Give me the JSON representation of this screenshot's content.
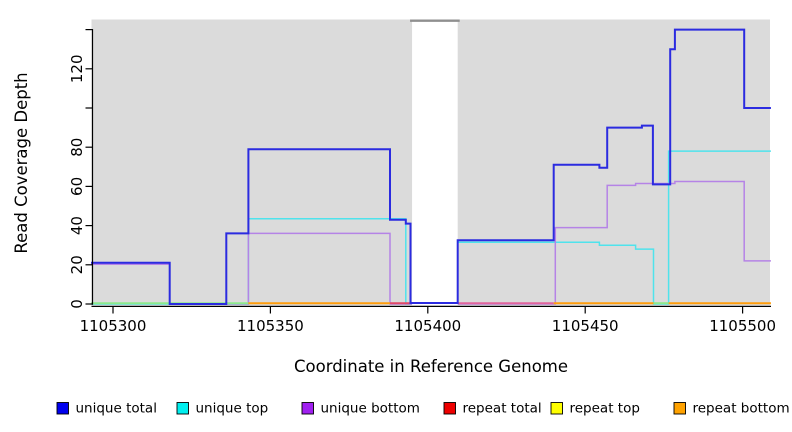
{
  "chart_data": {
    "type": "line",
    "subtype": "step-coverage",
    "title": "",
    "xlabel": "Coordinate in Reference Genome",
    "ylabel": "Read Coverage Depth",
    "xlim": [
      1105293,
      1105509
    ],
    "ylim": [
      0,
      145
    ],
    "grid": false,
    "legend_position": "bottom",
    "panel_background": "#dbdbdb",
    "x_ticks": [
      {
        "value": 1105300,
        "label": "1105300"
      },
      {
        "value": 1105350,
        "label": "1105350"
      },
      {
        "value": 1105400,
        "label": "1105400"
      },
      {
        "value": 1105450,
        "label": "1105450"
      },
      {
        "value": 1105500,
        "label": "1105500"
      }
    ],
    "y_ticks": [
      {
        "value": 0,
        "label": "0"
      },
      {
        "value": 20,
        "label": "20"
      },
      {
        "value": 40,
        "label": "40"
      },
      {
        "value": 60,
        "label": "60"
      },
      {
        "value": 80,
        "label": "80"
      },
      {
        "value": 100,
        "label": ""
      },
      {
        "value": 120,
        "label": "120"
      },
      {
        "value": 140,
        "label": ""
      }
    ],
    "no_data_gap": {
      "x_start": 1105395,
      "x_end": 1105409.5,
      "fill": "#ffffff",
      "top_border_color": "#8f8f8f"
    },
    "series": [
      {
        "name": "unique total",
        "color": "#2b2be0",
        "legend_color": "#0000ee",
        "draw_path": true,
        "layer": 3,
        "points": [
          [
            1105293,
            21
          ],
          [
            1105318,
            21
          ],
          [
            1105318,
            0
          ],
          [
            1105336,
            0
          ],
          [
            1105336,
            36
          ],
          [
            1105343,
            36
          ],
          [
            1105343,
            79
          ],
          [
            1105388,
            79
          ],
          [
            1105388,
            43
          ],
          [
            1105393,
            43
          ],
          [
            1105393,
            41
          ],
          [
            1105394.5,
            41
          ],
          [
            1105394.5,
            0.5
          ],
          [
            1105409.5,
            0.5
          ],
          [
            1105409.5,
            32.5
          ],
          [
            1105440,
            32.5
          ],
          [
            1105440,
            71
          ],
          [
            1105454.5,
            71
          ],
          [
            1105454.5,
            69.5
          ],
          [
            1105457,
            69.5
          ],
          [
            1105457,
            90
          ],
          [
            1105468,
            90
          ],
          [
            1105468,
            91
          ],
          [
            1105471.5,
            91
          ],
          [
            1105471.5,
            61
          ],
          [
            1105477,
            61
          ],
          [
            1105477,
            130
          ],
          [
            1105478.5,
            130
          ],
          [
            1105478.5,
            140
          ],
          [
            1105500.5,
            140
          ],
          [
            1105500.5,
            100
          ],
          [
            1105509,
            100
          ]
        ]
      },
      {
        "name": "unique top",
        "color": "#4fe3ec",
        "legend_color": "#00eeee",
        "draw_path": true,
        "layer": 1,
        "points": [
          [
            1105293,
            0
          ],
          [
            1105343,
            0
          ],
          [
            1105343,
            43.5
          ],
          [
            1105393,
            43.5
          ],
          [
            1105393,
            0
          ],
          [
            1105409.5,
            0
          ],
          [
            1105409.5,
            31.5
          ],
          [
            1105454.5,
            31.5
          ],
          [
            1105454.5,
            30
          ],
          [
            1105466,
            30
          ],
          [
            1105466,
            28
          ],
          [
            1105471.7,
            28
          ],
          [
            1105471.7,
            0
          ],
          [
            1105476.5,
            0
          ],
          [
            1105476.5,
            78
          ],
          [
            1105509,
            78
          ]
        ]
      },
      {
        "name": "unique bottom",
        "color": "#b583e6",
        "legend_color": "#a020f0",
        "draw_path": true,
        "layer": 1,
        "points": [
          [
            1105293,
            20.3
          ],
          [
            1105318,
            20.3
          ],
          [
            1105318,
            0
          ],
          [
            1105343,
            0
          ],
          [
            1105343,
            36
          ],
          [
            1105388,
            36
          ],
          [
            1105388,
            0
          ],
          [
            1105440.5,
            0
          ],
          [
            1105440.5,
            39
          ],
          [
            1105457,
            39
          ],
          [
            1105457,
            60.5
          ],
          [
            1105466,
            60.5
          ],
          [
            1105466,
            61.5
          ],
          [
            1105478.5,
            61.5
          ],
          [
            1105478.5,
            62.5
          ],
          [
            1105500.5,
            62.5
          ],
          [
            1105500.5,
            22
          ],
          [
            1105509,
            22
          ]
        ]
      },
      {
        "name": "repeat total",
        "color": "#ee0000",
        "legend_color": "#ee0000",
        "draw_path": false,
        "layer": 0,
        "points": [
          [
            1105293,
            0
          ],
          [
            1105509,
            0
          ]
        ]
      },
      {
        "name": "repeat top",
        "color": "#ffff00",
        "legend_color": "#ffff00",
        "draw_path": false,
        "layer": 0,
        "points": [
          [
            1105293,
            0
          ],
          [
            1105509,
            0
          ]
        ]
      },
      {
        "name": "repeat bottom",
        "color": "#ff9d0c",
        "legend_color": "#ffa200",
        "draw_path": false,
        "layer": 0,
        "points": [
          [
            1105293,
            0
          ],
          [
            1105509,
            0
          ]
        ]
      }
    ],
    "zero_line_segments": [
      {
        "x0": 1105293,
        "x1": 1105343,
        "color": "#8ce98c"
      },
      {
        "x0": 1105343,
        "x1": 1105388,
        "color": "#ff9d0c"
      },
      {
        "x0": 1105388,
        "x1": 1105394.5,
        "color": "#e04868"
      },
      {
        "x0": 1105409.5,
        "x1": 1105440,
        "color": "#e0649c"
      },
      {
        "x0": 1105440,
        "x1": 1105471.7,
        "color": "#ff9d0c"
      },
      {
        "x0": 1105471.7,
        "x1": 1105476.5,
        "color": "#8ce98c"
      },
      {
        "x0": 1105476.5,
        "x1": 1105509,
        "color": "#ff9d0c"
      }
    ]
  }
}
